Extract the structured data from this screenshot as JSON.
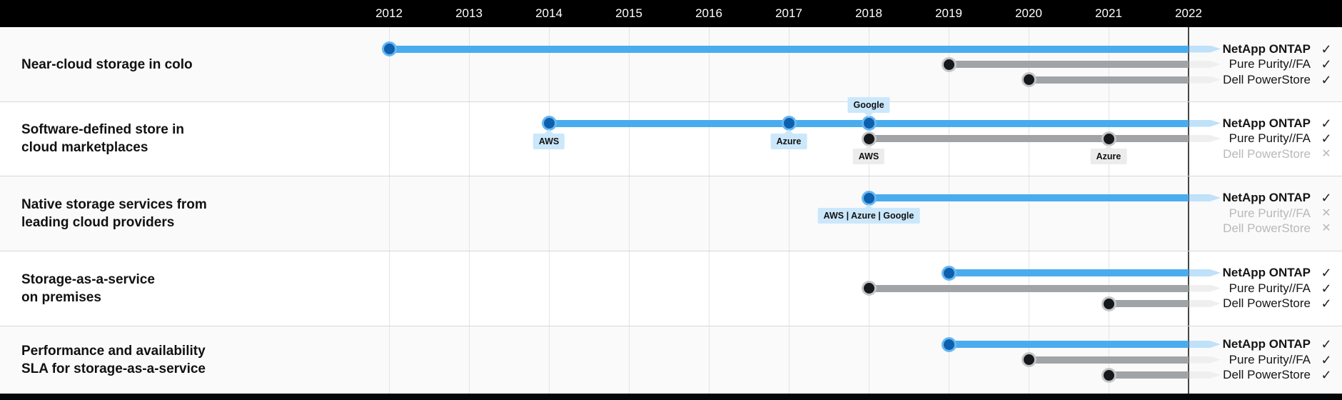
{
  "chart_data": {
    "type": "timeline",
    "x_axis": {
      "years": [
        "2012",
        "2013",
        "2014",
        "2015",
        "2016",
        "2017",
        "2018",
        "2019",
        "2020",
        "2021",
        "2022"
      ],
      "end_year": 2022
    },
    "marks": {
      "supported": "✓",
      "not_supported": "✕"
    },
    "rows": [
      {
        "label_lines": [
          "Near-cloud storage in colo"
        ],
        "vendors": [
          {
            "name": "NetApp ONTAP",
            "supported": true,
            "color": "blue",
            "start_year": 2012,
            "milestones": [
              {
                "year": 2012
              }
            ]
          },
          {
            "name": "Pure Purity//FA",
            "supported": true,
            "color": "gray",
            "start_year": 2019,
            "milestones": [
              {
                "year": 2019
              }
            ]
          },
          {
            "name": "Dell PowerStore",
            "supported": true,
            "color": "gray",
            "start_year": 2020,
            "milestones": [
              {
                "year": 2020
              }
            ]
          }
        ]
      },
      {
        "label_lines": [
          "Software-defined store in",
          "cloud marketplaces"
        ],
        "vendors": [
          {
            "name": "NetApp ONTAP",
            "supported": true,
            "color": "blue",
            "start_year": 2014,
            "milestones": [
              {
                "year": 2014,
                "badge": "AWS",
                "badge_pos": "below"
              },
              {
                "year": 2017,
                "badge": "Azure",
                "badge_pos": "below"
              },
              {
                "year": 2018,
                "badge": "Google",
                "badge_pos": "above"
              }
            ]
          },
          {
            "name": "Pure Purity//FA",
            "supported": true,
            "color": "gray",
            "start_year": 2018,
            "milestones": [
              {
                "year": 2018,
                "badge": "AWS",
                "badge_pos": "below"
              },
              {
                "year": 2021,
                "badge": "Azure",
                "badge_pos": "below"
              }
            ]
          },
          {
            "name": "Dell PowerStore",
            "supported": false
          }
        ]
      },
      {
        "label_lines": [
          "Native storage services from",
          "leading cloud providers"
        ],
        "vendors": [
          {
            "name": "NetApp ONTAP",
            "supported": true,
            "color": "blue",
            "start_year": 2018,
            "milestones": [
              {
                "year": 2018,
                "badge": "AWS | Azure | Google",
                "badge_pos": "below"
              }
            ]
          },
          {
            "name": "Pure Purity//FA",
            "supported": false
          },
          {
            "name": "Dell PowerStore",
            "supported": false
          }
        ]
      },
      {
        "label_lines": [
          "Storage-as-a-service",
          "on premises"
        ],
        "vendors": [
          {
            "name": "NetApp ONTAP",
            "supported": true,
            "color": "blue",
            "start_year": 2019,
            "milestones": [
              {
                "year": 2019
              }
            ]
          },
          {
            "name": "Pure Purity//FA",
            "supported": true,
            "color": "gray",
            "start_year": 2018,
            "milestones": [
              {
                "year": 2018
              }
            ]
          },
          {
            "name": "Dell PowerStore",
            "supported": true,
            "color": "gray",
            "start_year": 2021,
            "milestones": [
              {
                "year": 2021
              }
            ]
          }
        ]
      },
      {
        "label_lines": [
          "Performance and availability",
          "SLA for storage-as-a-service"
        ],
        "vendors": [
          {
            "name": "NetApp ONTAP",
            "supported": true,
            "color": "blue",
            "start_year": 2019,
            "milestones": [
              {
                "year": 2019
              }
            ]
          },
          {
            "name": "Pure Purity//FA",
            "supported": true,
            "color": "gray",
            "start_year": 2020,
            "milestones": [
              {
                "year": 2020
              }
            ]
          },
          {
            "name": "Dell PowerStore",
            "supported": true,
            "color": "gray",
            "start_year": 2021,
            "milestones": [
              {
                "year": 2021
              }
            ]
          }
        ]
      }
    ]
  },
  "colors": {
    "header_bg": "#000000",
    "footer_bg": "#050608",
    "row_alt_bg": "#fafafa",
    "bar_blue": "#49acee",
    "bar_blue_fade": "#bfe1f9",
    "bar_gray": "#a1a4a7",
    "bar_gray_fade": "#efefef",
    "dot_blue": "#0e5fae",
    "dot_black": "#16181b",
    "badge_blue_bg": "#cbe7fb",
    "badge_gray_bg": "#ececec",
    "muted_text": "#b7b9ba",
    "grid_line": "#e4e4e4",
    "end_line": "#474747"
  }
}
